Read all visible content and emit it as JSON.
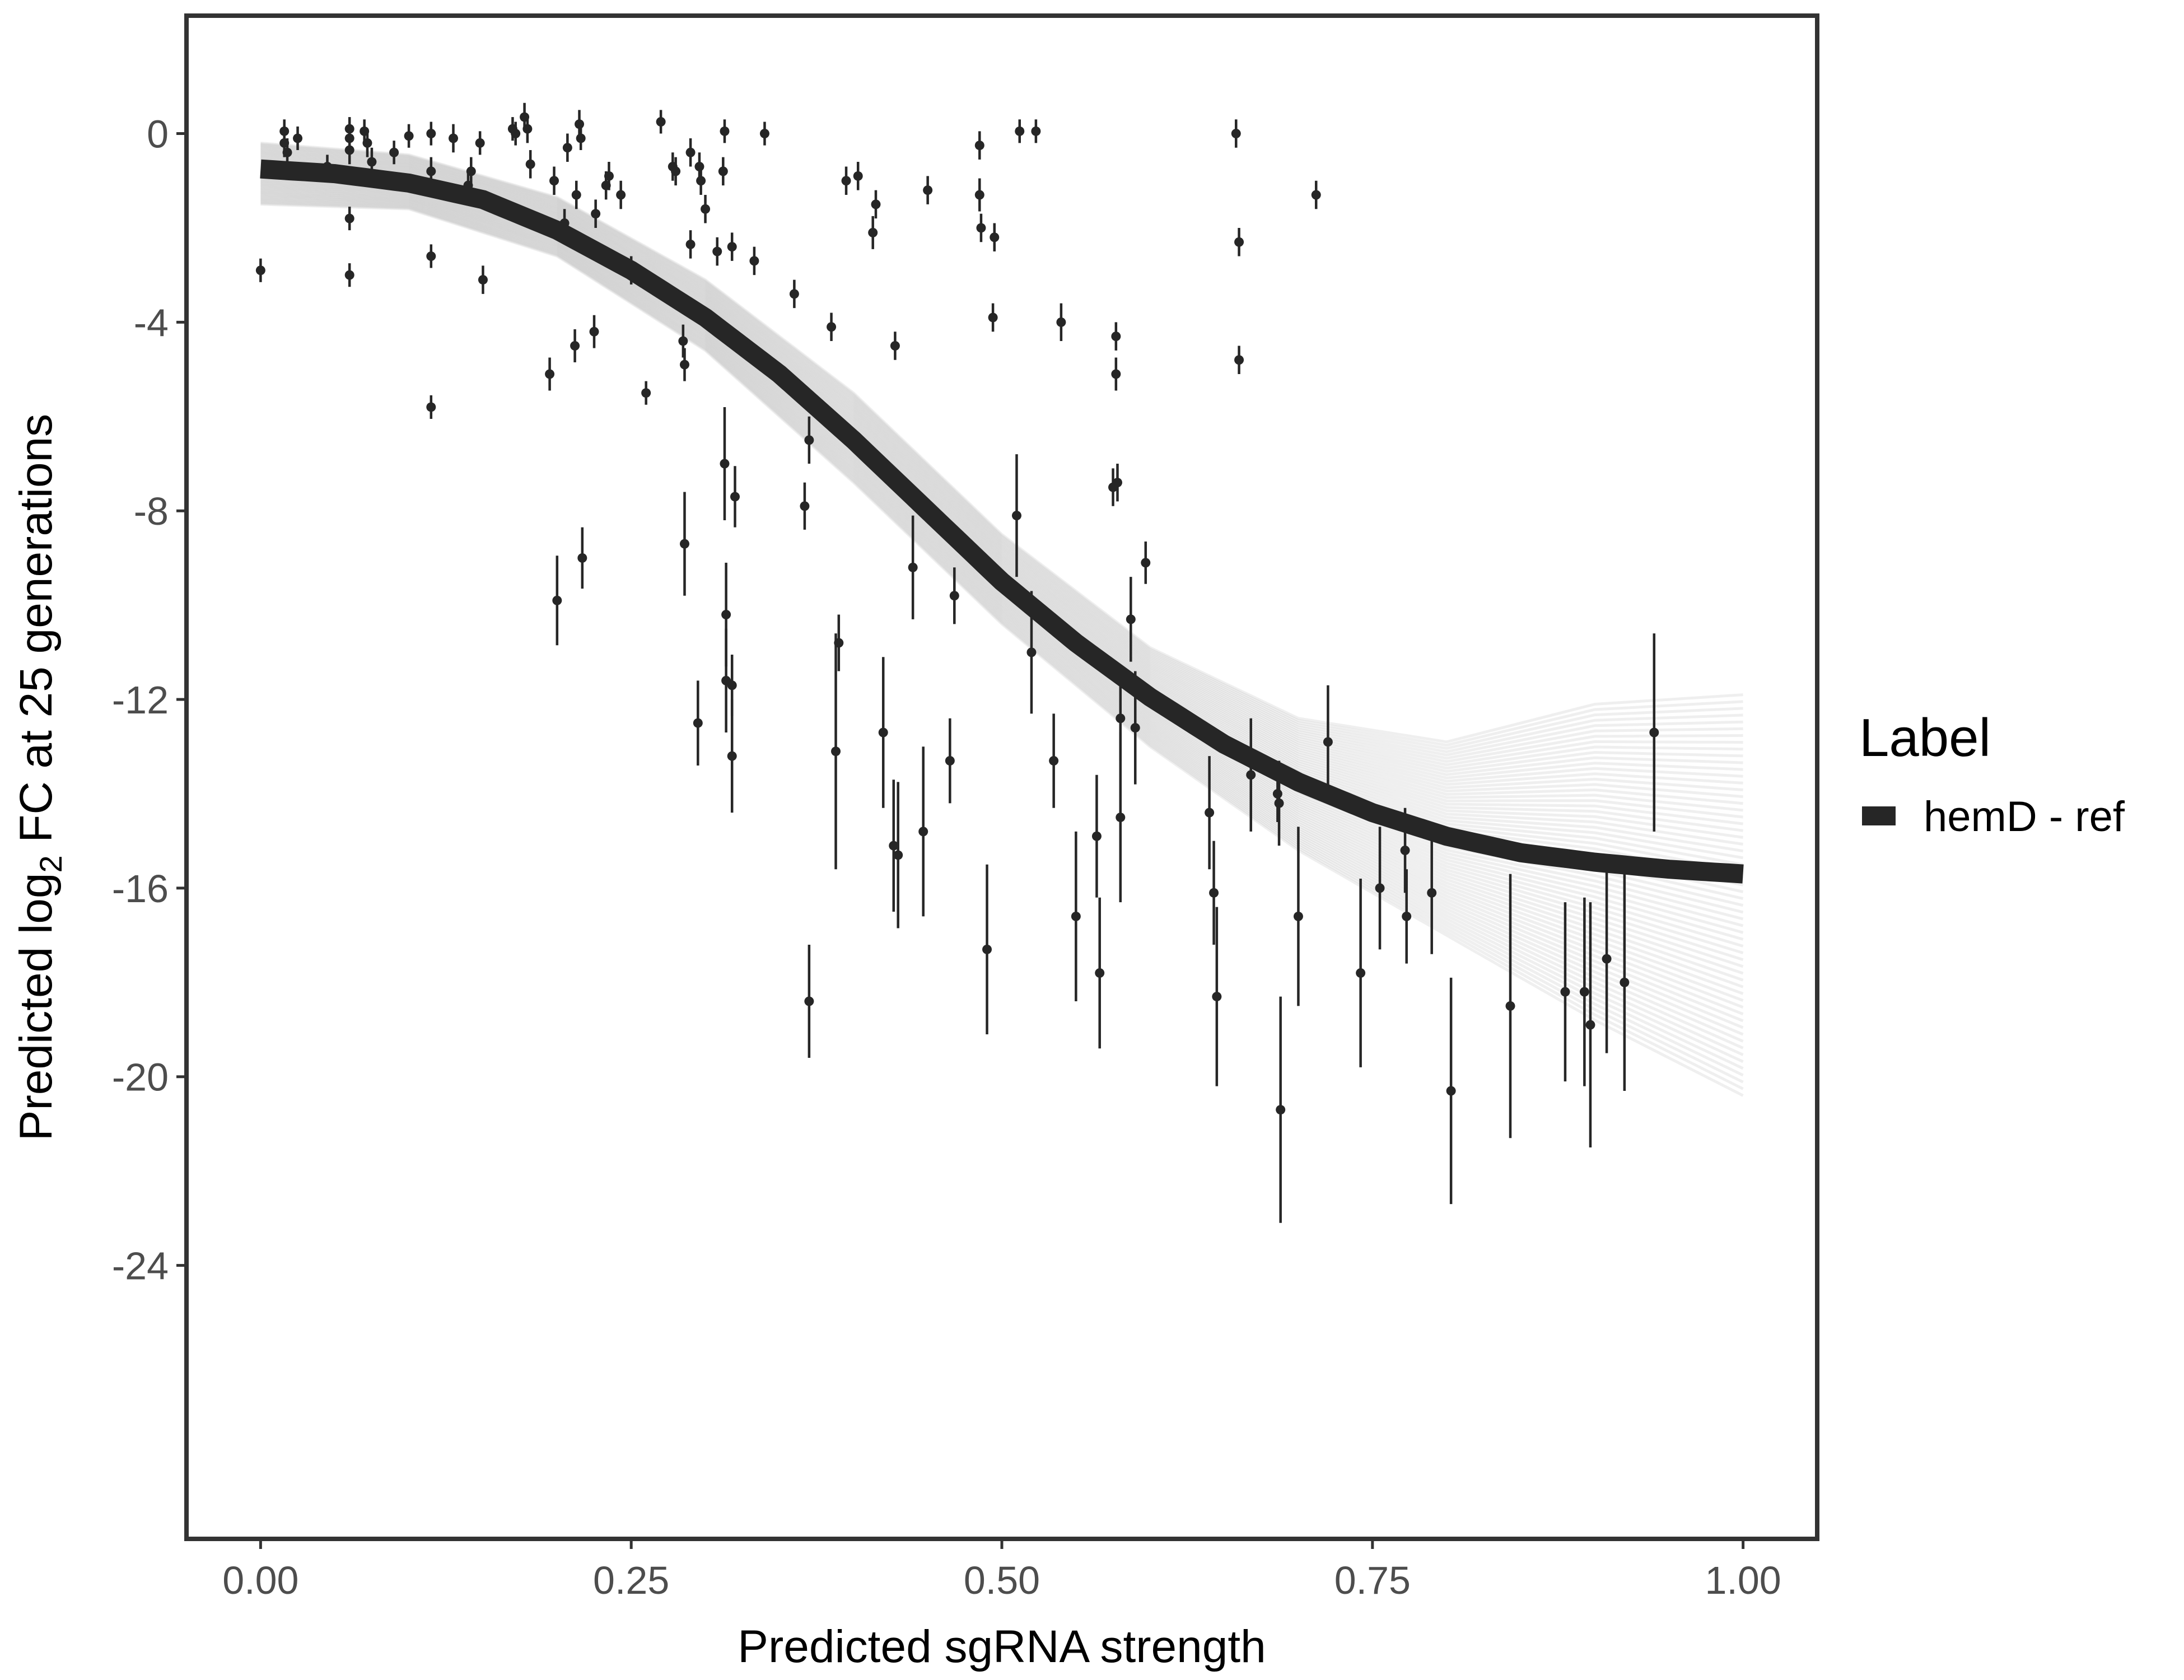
{
  "chart_data": {
    "type": "scatter",
    "title": "",
    "xlabel": "Predicted sgRNA strength",
    "ylabel_parts": {
      "pre": "Predicted  log",
      "sub": "2",
      "post": " FC at 25 generations"
    },
    "xlim": [
      -0.05,
      1.05
    ],
    "ylim": [
      -29.8,
      2.5
    ],
    "x_ticks": [
      0.0,
      0.25,
      0.5,
      0.75,
      1.0
    ],
    "x_tick_labels": [
      "0.00",
      "0.25",
      "0.50",
      "0.75",
      "1.00"
    ],
    "y_ticks": [
      0,
      -4,
      -8,
      -12,
      -16,
      -20,
      -24
    ],
    "y_tick_labels": [
      "0",
      "-4",
      "-8",
      "-12",
      "-16",
      "-20",
      "-24"
    ],
    "grid": false,
    "legend": {
      "title": "Label",
      "position": "right",
      "entries": [
        {
          "label": "hemD - ref",
          "color": "#262626"
        }
      ]
    },
    "colors": {
      "fit_line": "#262626",
      "posterior_draws": "#9a9a9a",
      "points": "#262626",
      "frame": "#333333"
    },
    "fit_curve": {
      "name": "hemD - ref",
      "x": [
        0.0,
        0.05,
        0.1,
        0.15,
        0.2,
        0.25,
        0.3,
        0.35,
        0.4,
        0.45,
        0.5,
        0.55,
        0.6,
        0.65,
        0.7,
        0.75,
        0.8,
        0.85,
        0.9,
        0.95,
        1.0
      ],
      "y": [
        -0.75,
        -0.85,
        -1.05,
        -1.4,
        -2.05,
        -2.9,
        -3.9,
        -5.1,
        -6.5,
        -8.0,
        -9.5,
        -10.8,
        -11.95,
        -12.95,
        -13.75,
        -14.4,
        -14.9,
        -15.25,
        -15.45,
        -15.6,
        -15.7
      ]
    },
    "posterior_band": {
      "x": [
        0.0,
        0.1,
        0.2,
        0.3,
        0.4,
        0.5,
        0.6,
        0.7,
        0.8,
        0.9,
        1.0
      ],
      "y_upper": [
        -0.2,
        -0.45,
        -1.35,
        -3.1,
        -5.5,
        -8.5,
        -10.9,
        -12.4,
        -12.9,
        -12.1,
        -11.9
      ],
      "y_lower": [
        -1.5,
        -1.6,
        -2.6,
        -4.6,
        -7.4,
        -10.4,
        -13.0,
        -15.2,
        -17.0,
        -18.8,
        -20.4
      ],
      "draws": 60
    },
    "points": [
      {
        "x": 0.0,
        "y": -2.9,
        "err": 0.25
      },
      {
        "x": 0.016,
        "y": 0.05,
        "err": 0.25
      },
      {
        "x": 0.016,
        "y": -0.2,
        "err": 0.3
      },
      {
        "x": 0.018,
        "y": -0.4,
        "err": 0.3
      },
      {
        "x": 0.025,
        "y": -0.1,
        "err": 0.25
      },
      {
        "x": 0.045,
        "y": -0.7,
        "err": 0.25
      },
      {
        "x": 0.06,
        "y": 0.1,
        "err": 0.25
      },
      {
        "x": 0.06,
        "y": -0.1,
        "err": 0.3
      },
      {
        "x": 0.06,
        "y": -0.35,
        "err": 0.3
      },
      {
        "x": 0.06,
        "y": -1.8,
        "err": 0.25
      },
      {
        "x": 0.06,
        "y": -3.0,
        "err": 0.25
      },
      {
        "x": 0.07,
        "y": 0.05,
        "err": 0.25
      },
      {
        "x": 0.072,
        "y": -0.2,
        "err": 0.3
      },
      {
        "x": 0.075,
        "y": -0.6,
        "err": 0.3
      },
      {
        "x": 0.09,
        "y": -0.4,
        "err": 0.25
      },
      {
        "x": 0.1,
        "y": -0.05,
        "err": 0.25
      },
      {
        "x": 0.115,
        "y": 0.0,
        "err": 0.25
      },
      {
        "x": 0.115,
        "y": -0.8,
        "err": 0.3
      },
      {
        "x": 0.115,
        "y": -2.6,
        "err": 0.25
      },
      {
        "x": 0.115,
        "y": -5.8,
        "err": 0.25
      },
      {
        "x": 0.13,
        "y": -0.1,
        "err": 0.3
      },
      {
        "x": 0.14,
        "y": -1.1,
        "err": 0.3
      },
      {
        "x": 0.142,
        "y": -0.8,
        "err": 0.3
      },
      {
        "x": 0.148,
        "y": -0.2,
        "err": 0.25
      },
      {
        "x": 0.15,
        "y": -3.1,
        "err": 0.3
      },
      {
        "x": 0.17,
        "y": 0.1,
        "err": 0.25
      },
      {
        "x": 0.172,
        "y": 0.0,
        "err": 0.25
      },
      {
        "x": 0.178,
        "y": 0.35,
        "err": 0.3
      },
      {
        "x": 0.18,
        "y": 0.1,
        "err": 0.3
      },
      {
        "x": 0.182,
        "y": -0.65,
        "err": 0.3
      },
      {
        "x": 0.195,
        "y": -5.1,
        "err": 0.35
      },
      {
        "x": 0.198,
        "y": -1.0,
        "err": 0.3
      },
      {
        "x": 0.2,
        "y": -9.9,
        "err": 0.95
      },
      {
        "x": 0.205,
        "y": -1.9,
        "err": 0.3
      },
      {
        "x": 0.207,
        "y": -0.3,
        "err": 0.3
      },
      {
        "x": 0.212,
        "y": -4.5,
        "err": 0.35
      },
      {
        "x": 0.213,
        "y": -1.3,
        "err": 0.3
      },
      {
        "x": 0.215,
        "y": 0.2,
        "err": 0.3
      },
      {
        "x": 0.216,
        "y": -0.1,
        "err": 0.25
      },
      {
        "x": 0.217,
        "y": -9.0,
        "err": 0.65
      },
      {
        "x": 0.225,
        "y": -4.2,
        "err": 0.35
      },
      {
        "x": 0.226,
        "y": -1.7,
        "err": 0.3
      },
      {
        "x": 0.233,
        "y": -1.1,
        "err": 0.3
      },
      {
        "x": 0.235,
        "y": -0.9,
        "err": 0.3
      },
      {
        "x": 0.243,
        "y": -1.3,
        "err": 0.3
      },
      {
        "x": 0.25,
        "y": -2.9,
        "err": 0.3
      },
      {
        "x": 0.26,
        "y": -5.5,
        "err": 0.25
      },
      {
        "x": 0.27,
        "y": 0.25,
        "err": 0.25
      },
      {
        "x": 0.278,
        "y": -0.7,
        "err": 0.3
      },
      {
        "x": 0.28,
        "y": -0.8,
        "err": 0.3
      },
      {
        "x": 0.285,
        "y": -4.4,
        "err": 0.35
      },
      {
        "x": 0.286,
        "y": -4.9,
        "err": 0.35
      },
      {
        "x": 0.286,
        "y": -8.7,
        "err": 1.1
      },
      {
        "x": 0.29,
        "y": -2.35,
        "err": 0.3
      },
      {
        "x": 0.29,
        "y": -0.4,
        "err": 0.3
      },
      {
        "x": 0.295,
        "y": -12.5,
        "err": 0.9
      },
      {
        "x": 0.296,
        "y": -0.7,
        "err": 0.3
      },
      {
        "x": 0.297,
        "y": -1.0,
        "err": 0.3
      },
      {
        "x": 0.3,
        "y": -1.6,
        "err": 0.3
      },
      {
        "x": 0.308,
        "y": -2.5,
        "err": 0.3
      },
      {
        "x": 0.312,
        "y": -0.8,
        "err": 0.3
      },
      {
        "x": 0.313,
        "y": -7.0,
        "err": 1.2
      },
      {
        "x": 0.313,
        "y": 0.05,
        "err": 0.25
      },
      {
        "x": 0.314,
        "y": -10.2,
        "err": 1.1
      },
      {
        "x": 0.314,
        "y": -11.6,
        "err": 1.1
      },
      {
        "x": 0.318,
        "y": -11.7,
        "err": 0.65
      },
      {
        "x": 0.318,
        "y": -2.4,
        "err": 0.3
      },
      {
        "x": 0.318,
        "y": -13.2,
        "err": 1.2
      },
      {
        "x": 0.32,
        "y": -7.7,
        "err": 0.65
      },
      {
        "x": 0.333,
        "y": -2.7,
        "err": 0.3
      },
      {
        "x": 0.34,
        "y": 0.0,
        "err": 0.25
      },
      {
        "x": 0.36,
        "y": -3.4,
        "err": 0.3
      },
      {
        "x": 0.367,
        "y": -7.9,
        "err": 0.5
      },
      {
        "x": 0.37,
        "y": -6.5,
        "err": 0.5
      },
      {
        "x": 0.37,
        "y": -18.4,
        "err": 1.2
      },
      {
        "x": 0.385,
        "y": -4.1,
        "err": 0.3
      },
      {
        "x": 0.388,
        "y": -13.1,
        "err": 2.5
      },
      {
        "x": 0.39,
        "y": -10.8,
        "err": 0.6
      },
      {
        "x": 0.395,
        "y": -1.0,
        "err": 0.3
      },
      {
        "x": 0.403,
        "y": -0.9,
        "err": 0.3
      },
      {
        "x": 0.413,
        "y": -2.1,
        "err": 0.35
      },
      {
        "x": 0.415,
        "y": -1.5,
        "err": 0.3
      },
      {
        "x": 0.42,
        "y": -12.7,
        "err": 1.6
      },
      {
        "x": 0.427,
        "y": -15.1,
        "err": 1.4
      },
      {
        "x": 0.428,
        "y": -4.5,
        "err": 0.3
      },
      {
        "x": 0.43,
        "y": -15.3,
        "err": 1.55
      },
      {
        "x": 0.44,
        "y": -9.2,
        "err": 1.1
      },
      {
        "x": 0.447,
        "y": -14.8,
        "err": 1.8
      },
      {
        "x": 0.45,
        "y": -1.2,
        "err": 0.3
      },
      {
        "x": 0.465,
        "y": -13.3,
        "err": 0.9
      },
      {
        "x": 0.468,
        "y": -9.8,
        "err": 0.6
      },
      {
        "x": 0.485,
        "y": -0.25,
        "err": 0.3
      },
      {
        "x": 0.485,
        "y": -1.3,
        "err": 0.35
      },
      {
        "x": 0.486,
        "y": -2.0,
        "err": 0.3
      },
      {
        "x": 0.49,
        "y": -17.3,
        "err": 1.8
      },
      {
        "x": 0.494,
        "y": -3.9,
        "err": 0.3
      },
      {
        "x": 0.495,
        "y": -2.2,
        "err": 0.3
      },
      {
        "x": 0.51,
        "y": -8.1,
        "err": 1.3
      },
      {
        "x": 0.512,
        "y": 0.05,
        "err": 0.25
      },
      {
        "x": 0.52,
        "y": -11.0,
        "err": 1.3
      },
      {
        "x": 0.523,
        "y": 0.05,
        "err": 0.25
      },
      {
        "x": 0.535,
        "y": -13.3,
        "err": 1.0
      },
      {
        "x": 0.54,
        "y": -4.0,
        "err": 0.4
      },
      {
        "x": 0.55,
        "y": -16.6,
        "err": 1.8
      },
      {
        "x": 0.564,
        "y": -14.9,
        "err": 1.3
      },
      {
        "x": 0.566,
        "y": -17.8,
        "err": 1.6
      },
      {
        "x": 0.575,
        "y": -7.5,
        "err": 0.4
      },
      {
        "x": 0.577,
        "y": -4.3,
        "err": 0.3
      },
      {
        "x": 0.577,
        "y": -5.1,
        "err": 0.35
      },
      {
        "x": 0.578,
        "y": -7.4,
        "err": 0.4
      },
      {
        "x": 0.58,
        "y": -12.4,
        "err": 0.9
      },
      {
        "x": 0.58,
        "y": -14.5,
        "err": 1.8
      },
      {
        "x": 0.587,
        "y": -10.3,
        "err": 0.9
      },
      {
        "x": 0.59,
        "y": -12.6,
        "err": 1.2
      },
      {
        "x": 0.597,
        "y": -9.1,
        "err": 0.45
      },
      {
        "x": 0.64,
        "y": -14.4,
        "err": 1.2
      },
      {
        "x": 0.643,
        "y": -16.1,
        "err": 1.1
      },
      {
        "x": 0.645,
        "y": -18.3,
        "err": 1.9
      },
      {
        "x": 0.658,
        "y": 0.0,
        "err": 0.3
      },
      {
        "x": 0.66,
        "y": -2.3,
        "err": 0.3
      },
      {
        "x": 0.66,
        "y": -4.8,
        "err": 0.3
      },
      {
        "x": 0.668,
        "y": -13.6,
        "err": 1.2
      },
      {
        "x": 0.686,
        "y": -14.0,
        "err": 0.6
      },
      {
        "x": 0.687,
        "y": -14.2,
        "err": 0.9
      },
      {
        "x": 0.688,
        "y": -20.7,
        "err": 2.4
      },
      {
        "x": 0.7,
        "y": -16.6,
        "err": 1.9
      },
      {
        "x": 0.712,
        "y": -1.3,
        "err": 0.3
      },
      {
        "x": 0.72,
        "y": -12.9,
        "err": 1.2
      },
      {
        "x": 0.742,
        "y": -17.8,
        "err": 2.0
      },
      {
        "x": 0.755,
        "y": -16.0,
        "err": 1.3
      },
      {
        "x": 0.772,
        "y": -15.2,
        "err": 0.9
      },
      {
        "x": 0.773,
        "y": -16.6,
        "err": 1.0
      },
      {
        "x": 0.79,
        "y": -16.1,
        "err": 1.3
      },
      {
        "x": 0.803,
        "y": -20.3,
        "err": 2.4
      },
      {
        "x": 0.843,
        "y": -18.5,
        "err": 2.8
      },
      {
        "x": 0.88,
        "y": -18.2,
        "err": 1.9
      },
      {
        "x": 0.893,
        "y": -18.2,
        "err": 2.0
      },
      {
        "x": 0.897,
        "y": -18.9,
        "err": 2.6
      },
      {
        "x": 0.908,
        "y": -17.5,
        "err": 2.0
      },
      {
        "x": 0.92,
        "y": -18.0,
        "err": 2.3
      },
      {
        "x": 0.94,
        "y": -12.7,
        "err": 2.1
      }
    ]
  }
}
